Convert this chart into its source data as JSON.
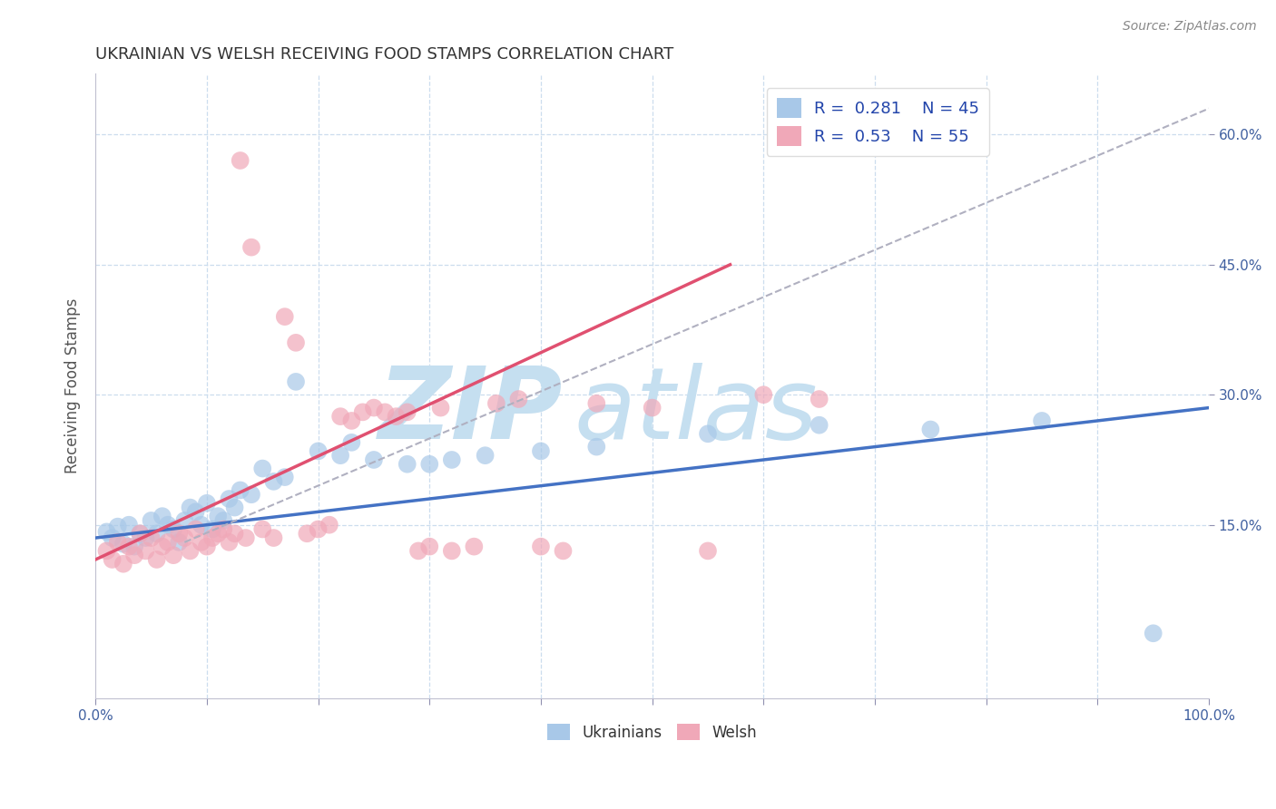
{
  "title": "UKRAINIAN VS WELSH RECEIVING FOOD STAMPS CORRELATION CHART",
  "source_text": "Source: ZipAtlas.com",
  "ylabel": "Receiving Food Stamps",
  "xlim": [
    0.0,
    100.0
  ],
  "ylim": [
    -5.0,
    67.0
  ],
  "blue_R": 0.281,
  "blue_N": 45,
  "pink_R": 0.53,
  "pink_N": 55,
  "blue_color": "#a8c8e8",
  "pink_color": "#f0a8b8",
  "blue_line_color": "#4472c4",
  "pink_line_color": "#e05070",
  "blue_scatter": [
    [
      1.0,
      14.2
    ],
    [
      1.5,
      13.5
    ],
    [
      2.0,
      14.8
    ],
    [
      2.5,
      12.8
    ],
    [
      3.0,
      15.0
    ],
    [
      3.5,
      12.5
    ],
    [
      4.0,
      14.0
    ],
    [
      4.5,
      13.5
    ],
    [
      5.0,
      15.5
    ],
    [
      5.5,
      14.0
    ],
    [
      6.0,
      16.0
    ],
    [
      6.5,
      15.0
    ],
    [
      7.0,
      14.5
    ],
    [
      7.5,
      13.0
    ],
    [
      8.0,
      15.5
    ],
    [
      8.5,
      17.0
    ],
    [
      9.0,
      16.5
    ],
    [
      9.5,
      15.0
    ],
    [
      10.0,
      17.5
    ],
    [
      10.5,
      14.5
    ],
    [
      11.0,
      16.0
    ],
    [
      11.5,
      15.5
    ],
    [
      12.0,
      18.0
    ],
    [
      12.5,
      17.0
    ],
    [
      13.0,
      19.0
    ],
    [
      14.0,
      18.5
    ],
    [
      15.0,
      21.5
    ],
    [
      16.0,
      20.0
    ],
    [
      17.0,
      20.5
    ],
    [
      18.0,
      31.5
    ],
    [
      20.0,
      23.5
    ],
    [
      22.0,
      23.0
    ],
    [
      23.0,
      24.5
    ],
    [
      25.0,
      22.5
    ],
    [
      28.0,
      22.0
    ],
    [
      30.0,
      22.0
    ],
    [
      32.0,
      22.5
    ],
    [
      35.0,
      23.0
    ],
    [
      40.0,
      23.5
    ],
    [
      45.0,
      24.0
    ],
    [
      55.0,
      25.5
    ],
    [
      65.0,
      26.5
    ],
    [
      75.0,
      26.0
    ],
    [
      85.0,
      27.0
    ],
    [
      95.0,
      2.5
    ]
  ],
  "pink_scatter": [
    [
      1.0,
      12.0
    ],
    [
      1.5,
      11.0
    ],
    [
      2.0,
      13.0
    ],
    [
      2.5,
      10.5
    ],
    [
      3.0,
      12.5
    ],
    [
      3.5,
      11.5
    ],
    [
      4.0,
      14.0
    ],
    [
      4.5,
      12.0
    ],
    [
      5.0,
      13.5
    ],
    [
      5.5,
      11.0
    ],
    [
      6.0,
      12.5
    ],
    [
      6.5,
      13.0
    ],
    [
      7.0,
      11.5
    ],
    [
      7.5,
      14.0
    ],
    [
      8.0,
      13.5
    ],
    [
      8.5,
      12.0
    ],
    [
      9.0,
      14.5
    ],
    [
      9.5,
      13.0
    ],
    [
      10.0,
      12.5
    ],
    [
      10.5,
      13.5
    ],
    [
      11.0,
      14.0
    ],
    [
      11.5,
      14.5
    ],
    [
      12.0,
      13.0
    ],
    [
      12.5,
      14.0
    ],
    [
      13.0,
      57.0
    ],
    [
      13.5,
      13.5
    ],
    [
      14.0,
      47.0
    ],
    [
      15.0,
      14.5
    ],
    [
      16.0,
      13.5
    ],
    [
      17.0,
      39.0
    ],
    [
      18.0,
      36.0
    ],
    [
      19.0,
      14.0
    ],
    [
      20.0,
      14.5
    ],
    [
      21.0,
      15.0
    ],
    [
      22.0,
      27.5
    ],
    [
      23.0,
      27.0
    ],
    [
      24.0,
      28.0
    ],
    [
      25.0,
      28.5
    ],
    [
      26.0,
      28.0
    ],
    [
      27.0,
      27.5
    ],
    [
      28.0,
      28.0
    ],
    [
      29.0,
      12.0
    ],
    [
      30.0,
      12.5
    ],
    [
      31.0,
      28.5
    ],
    [
      32.0,
      12.0
    ],
    [
      34.0,
      12.5
    ],
    [
      36.0,
      29.0
    ],
    [
      38.0,
      29.5
    ],
    [
      40.0,
      12.5
    ],
    [
      42.0,
      12.0
    ],
    [
      45.0,
      29.0
    ],
    [
      50.0,
      28.5
    ],
    [
      55.0,
      12.0
    ],
    [
      60.0,
      30.0
    ],
    [
      65.0,
      29.5
    ]
  ],
  "blue_trend": [
    0.0,
    13.5,
    100.0,
    28.5
  ],
  "pink_trend": [
    0.0,
    11.0,
    57.0,
    45.0
  ],
  "dashed_trend": [
    8.0,
    13.0,
    100.0,
    63.0
  ],
  "watermark_zip": "ZIP",
  "watermark_atlas": "atlas",
  "watermark_color": "#c5dff0",
  "background_color": "#ffffff",
  "grid_color": "#ccddee"
}
